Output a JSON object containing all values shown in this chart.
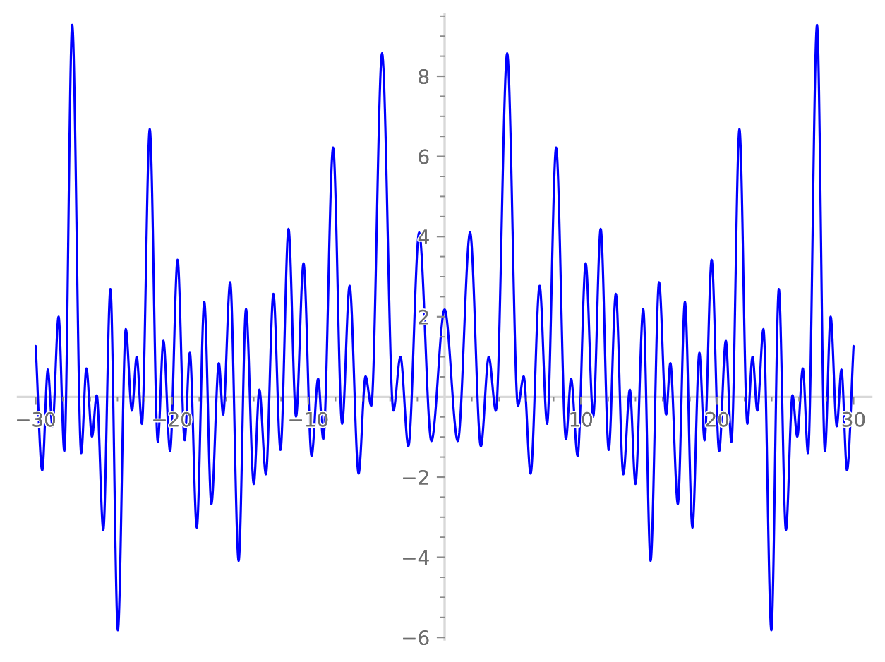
{
  "chart_data": {
    "type": "line",
    "x": [
      -30,
      -29.52,
      -29.11,
      -28.77,
      -28.32,
      -27.9,
      -27.32,
      -26.66,
      -26.28,
      -25.87,
      -25.52,
      -25.04,
      -24.52,
      -23.97,
      -23.39,
      -22.94,
      -22.59,
      -22.21,
      -21.63,
      -21.04,
      -20.63,
      -20.14,
      -19.59,
      -19.07,
      -18.69,
      -18.18,
      -17.63,
      -17.11,
      -16.56,
      -16.25,
      -15.73,
      -15.11,
      -14.57,
      -14.0,
      -13.59,
      -13.11,
      -12.56,
      -12.04,
      -11.45,
      -10.9,
      -10.35,
      -9.76,
      -9.28,
      -8.9,
      -8.18,
      -7.52,
      -6.97,
      -6.31,
      -5.8,
      -5.38,
      -4.59,
      -3.76,
      -3.24,
      -2.66,
      -1.87,
      -0.97,
      0,
      0.97,
      1.87,
      2.66,
      3.24,
      3.76,
      4.59,
      5.38,
      5.8,
      6.31,
      6.97,
      7.52,
      8.18,
      8.9,
      9.28,
      9.76,
      10.35,
      10.9,
      11.45,
      12.04,
      12.56,
      13.11,
      13.59,
      14.0,
      14.57,
      15.11,
      15.73,
      16.25,
      16.56,
      17.11,
      17.63,
      18.18,
      18.69,
      19.07,
      19.59,
      20.14,
      20.63,
      21.04,
      21.63,
      22.21,
      22.59,
      22.94,
      23.39,
      23.97,
      24.52,
      25.04,
      25.52,
      25.87,
      26.28,
      26.66,
      27.32,
      27.9,
      28.32,
      28.77,
      29.11,
      29.52,
      30
    ],
    "series": [
      {
        "color": "#0000ff",
        "values": [
          1.27,
          -1.83,
          0.68,
          -0.73,
          2.0,
          -1.35,
          9.28,
          -1.4,
          0.71,
          -0.99,
          0.04,
          -3.32,
          2.69,
          -5.82,
          1.69,
          -0.34,
          1.0,
          -0.67,
          6.68,
          -1.12,
          1.4,
          -1.35,
          3.42,
          -1.08,
          1.1,
          -3.26,
          2.37,
          -2.67,
          0.84,
          -0.44,
          2.86,
          -4.09,
          2.19,
          -2.17,
          0.18,
          -1.93,
          2.57,
          -1.32,
          4.19,
          -0.49,
          3.33,
          -1.47,
          0.45,
          -1.05,
          6.22,
          -0.67,
          2.77,
          -1.91,
          0.51,
          -0.22,
          8.57,
          -0.34,
          1.0,
          -1.23,
          4.1,
          -1.1,
          2.18,
          -1.1,
          4.1,
          -1.23,
          1.0,
          -0.34,
          8.57,
          -0.22,
          0.51,
          -1.91,
          2.77,
          -0.67,
          6.22,
          -1.05,
          0.45,
          -1.47,
          3.33,
          -0.49,
          4.19,
          -1.32,
          2.57,
          -1.93,
          0.18,
          -2.17,
          2.19,
          -4.09,
          2.86,
          -0.44,
          0.84,
          -2.67,
          2.37,
          -3.26,
          1.1,
          -1.08,
          3.42,
          -1.35,
          1.4,
          -1.12,
          6.68,
          -0.67,
          1.0,
          -0.34,
          1.69,
          -5.82,
          2.69,
          -3.32,
          0.04,
          -0.99,
          0.71,
          -1.4,
          9.28,
          -1.35,
          2.0,
          -0.73,
          0.68,
          -1.83,
          1.27
        ]
      }
    ],
    "xlim": [
      -31.3,
      31.3
    ],
    "ylim": [
      -6.05,
      9.55
    ],
    "xticks": [
      {
        "value": -30,
        "label": "−30"
      },
      {
        "value": -28,
        "label": null
      },
      {
        "value": -26,
        "label": null
      },
      {
        "value": -24,
        "label": null
      },
      {
        "value": -22,
        "label": null
      },
      {
        "value": -20,
        "label": "−20"
      },
      {
        "value": -18,
        "label": null
      },
      {
        "value": -16,
        "label": null
      },
      {
        "value": -14,
        "label": null
      },
      {
        "value": -12,
        "label": null
      },
      {
        "value": -10,
        "label": "−10"
      },
      {
        "value": -8,
        "label": null
      },
      {
        "value": -6,
        "label": null
      },
      {
        "value": -4,
        "label": null
      },
      {
        "value": -2,
        "label": null
      },
      {
        "value": 2,
        "label": null
      },
      {
        "value": 4,
        "label": null
      },
      {
        "value": 6,
        "label": null
      },
      {
        "value": 8,
        "label": null
      },
      10,
      {
        "value": 12,
        "label": null
      },
      {
        "value": 14,
        "label": null
      },
      {
        "value": 16,
        "label": null
      },
      {
        "value": 18,
        "label": null
      },
      20,
      {
        "value": 22,
        "label": null
      },
      {
        "value": 24,
        "label": null
      },
      {
        "value": 26,
        "label": null
      },
      {
        "value": 28,
        "label": null
      },
      30
    ],
    "yticks": [
      {
        "value": -6,
        "label": "−6"
      },
      {
        "value": -5.5,
        "label": null
      },
      {
        "value": -5,
        "label": null
      },
      {
        "value": -4.5,
        "label": null
      },
      {
        "value": -4,
        "label": "−4"
      },
      {
        "value": -3.5,
        "label": null
      },
      {
        "value": -3,
        "label": null
      },
      {
        "value": -2.5,
        "label": null
      },
      {
        "value": -2,
        "label": "−2"
      },
      {
        "value": -1.5,
        "label": null
      },
      {
        "value": -1,
        "label": null
      },
      {
        "value": -0.5,
        "label": null
      },
      {
        "value": 0.5,
        "label": null
      },
      {
        "value": 1,
        "label": null
      },
      {
        "value": 1.5,
        "label": null
      },
      2,
      {
        "value": 2.5,
        "label": null
      },
      {
        "value": 3,
        "label": null
      },
      {
        "value": 3.5,
        "label": null
      },
      4,
      {
        "value": 4.5,
        "label": null
      },
      {
        "value": 5,
        "label": null
      },
      {
        "value": 5.5,
        "label": null
      },
      6,
      {
        "value": 6.5,
        "label": null
      },
      {
        "value": 7,
        "label": null
      },
      {
        "value": 7.5,
        "label": null
      },
      8,
      {
        "value": 8.5,
        "label": null
      },
      {
        "value": 9,
        "label": null
      },
      {
        "value": 9.5,
        "label": null
      }
    ],
    "line_style": "solid"
  }
}
